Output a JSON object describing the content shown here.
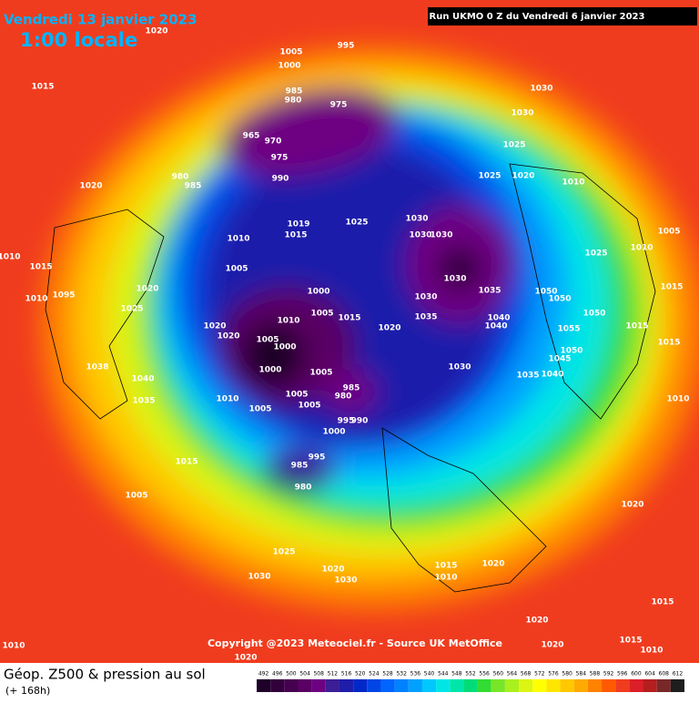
{
  "header": {
    "date": "Vendredi 13 janvier 2023",
    "time": "1:00 locale",
    "run": "Run UKMO 0 Z du Vendredi 6 janvier 2023"
  },
  "copyright": "Copyright @2023 Meteociel.fr - Source UK MetOffice",
  "footer": {
    "title": "Géop. Z500 & pression au sol",
    "lead": "(+ 168h)"
  },
  "colorbar": {
    "labels": [
      "492",
      "496",
      "500",
      "504",
      "508",
      "512",
      "516",
      "520",
      "524",
      "528",
      "532",
      "536",
      "540",
      "544",
      "548",
      "552",
      "556",
      "560",
      "564",
      "568",
      "572",
      "576",
      "580",
      "584",
      "588",
      "592",
      "596",
      "600",
      "604",
      "608",
      "612"
    ],
    "colors": [
      "#1e0028",
      "#32003c",
      "#460050",
      "#5a0064",
      "#6e0082",
      "#3c1e96",
      "#1e1eaa",
      "#0028c8",
      "#0046e6",
      "#0064ff",
      "#0082ff",
      "#00a0ff",
      "#00c8ff",
      "#00e6e6",
      "#00e6aa",
      "#00dc78",
      "#32dc32",
      "#78e628",
      "#aaf01e",
      "#dcf514",
      "#ffff00",
      "#ffe600",
      "#ffc800",
      "#ffaa00",
      "#ff8200",
      "#ff5a00",
      "#f03c1e",
      "#dc1e28",
      "#b41e1e",
      "#782828",
      "#1e1e1e"
    ]
  },
  "map": {
    "isobar_labels": [
      "995",
      "1005",
      "1000",
      "985",
      "980",
      "975",
      "965",
      "970",
      "975",
      "990",
      "980",
      "985",
      "1020",
      "1015",
      "1020",
      "1030",
      "1030",
      "1025",
      "1025",
      "1020",
      "1010",
      "1005",
      "1025",
      "1010",
      "1015",
      "1010",
      "1010",
      "1095",
      "1020",
      "1025",
      "1010",
      "1005",
      "1019",
      "1015",
      "1025",
      "1030",
      "1030",
      "1030",
      "1030",
      "1035",
      "1030",
      "1035",
      "1040",
      "1040",
      "1050",
      "1050",
      "1055",
      "1050",
      "1050",
      "1045",
      "1040",
      "1035",
      "1030",
      "1015",
      "1015",
      "1015",
      "1010",
      "1020",
      "1015",
      "1000",
      "1005",
      "1010",
      "1005",
      "1000",
      "1000",
      "1020",
      "1020",
      "1005",
      "985",
      "980",
      "995",
      "990",
      "1000",
      "1005",
      "1005",
      "1010",
      "1005",
      "1040",
      "1035",
      "1038",
      "1015",
      "1005",
      "995",
      "985",
      "980",
      "1025",
      "1030",
      "1020",
      "1030",
      "1015",
      "1010",
      "1020",
      "1020",
      "1015",
      "1020",
      "1020",
      "1015",
      "1010",
      "1020",
      "1010"
    ]
  }
}
